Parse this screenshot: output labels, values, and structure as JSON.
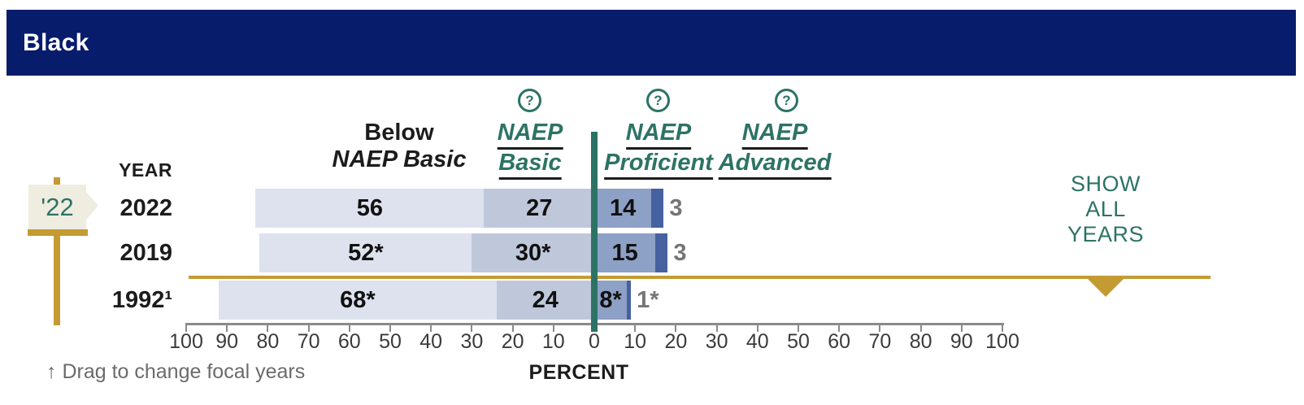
{
  "header": {
    "title": "Black"
  },
  "column_headers": {
    "below_basic": {
      "line1": "Below",
      "line2": "NAEP Basic"
    },
    "basic": {
      "line1": "NAEP",
      "line2": "Basic"
    },
    "proficient": {
      "line1": "NAEP",
      "line2": "Proficient"
    },
    "advanced": {
      "line1": "NAEP",
      "line2": "Advanced"
    }
  },
  "help_icon_glyph": "?",
  "year_column_header": "YEAR",
  "chart_data": {
    "type": "bar",
    "subtype": "diverging-stacked-horizontal",
    "group": "Black",
    "categories": [
      "2022",
      "2019",
      "1992¹"
    ],
    "series": [
      {
        "name": "Below NAEP Basic",
        "side": "left",
        "color": "#dde2ee",
        "values": [
          56,
          52,
          68
        ],
        "labels": [
          "56",
          "52*",
          "68*"
        ],
        "label_placement": "inside"
      },
      {
        "name": "NAEP Basic",
        "side": "left",
        "color": "#bfc8db",
        "values": [
          27,
          30,
          24
        ],
        "labels": [
          "27",
          "30*",
          "24"
        ],
        "label_placement": "inside"
      },
      {
        "name": "NAEP Proficient",
        "side": "right",
        "color": "#8da0c5",
        "values": [
          14,
          15,
          8
        ],
        "labels": [
          "14",
          "15",
          "8*"
        ],
        "label_placement": "inside"
      },
      {
        "name": "NAEP Advanced",
        "side": "right",
        "color": "#46619f",
        "values": [
          3,
          3,
          1
        ],
        "labels": [
          "3",
          "3",
          "1*"
        ],
        "label_placement": "outside"
      }
    ],
    "axis": {
      "min": -100,
      "max": 100,
      "tick_step": 10,
      "tick_label_style": "absolute",
      "xlabel": "PERCENT"
    },
    "divider_at": 0,
    "legend_position": "top"
  },
  "focal_year_flag": {
    "label": "'22"
  },
  "drag_hint": "↑ Drag to change focal years",
  "show_all_years": {
    "line1": "SHOW",
    "line2": "ALL",
    "line3": "YEARS"
  },
  "colors": {
    "header_bg": "#081c6c",
    "teal": "#2d7365",
    "gold": "#c49b33",
    "flag_bg": "#efece0",
    "outside_label": "#757575",
    "axis": "#8a8a8a"
  }
}
